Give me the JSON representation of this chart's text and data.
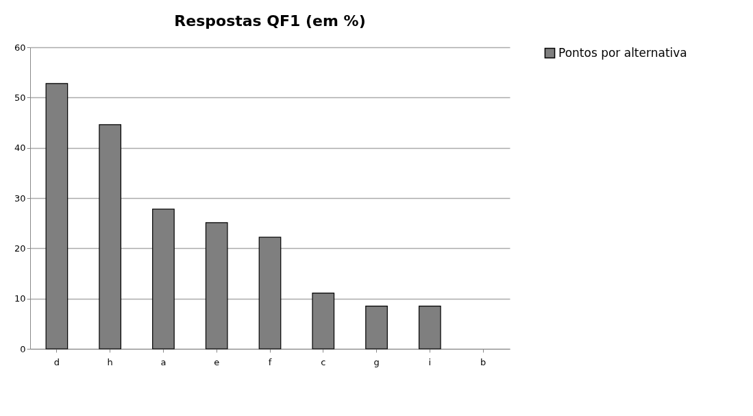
{
  "chart_data": {
    "type": "bar",
    "title": "Respostas QF1 (em %)",
    "categories": [
      "d",
      "h",
      "a",
      "e",
      "f",
      "c",
      "g",
      "i",
      "b"
    ],
    "series": [
      {
        "name": "Pontos por alternativa",
        "color": "#7f7f7f",
        "values": [
          52.8,
          44.6,
          27.8,
          25.1,
          22.2,
          11.1,
          8.5,
          8.5,
          0
        ]
      }
    ],
    "ylim": [
      0,
      60
    ],
    "yticks": [
      0,
      10,
      20,
      30,
      40,
      50,
      60
    ],
    "grid": "y",
    "legend": "right"
  }
}
